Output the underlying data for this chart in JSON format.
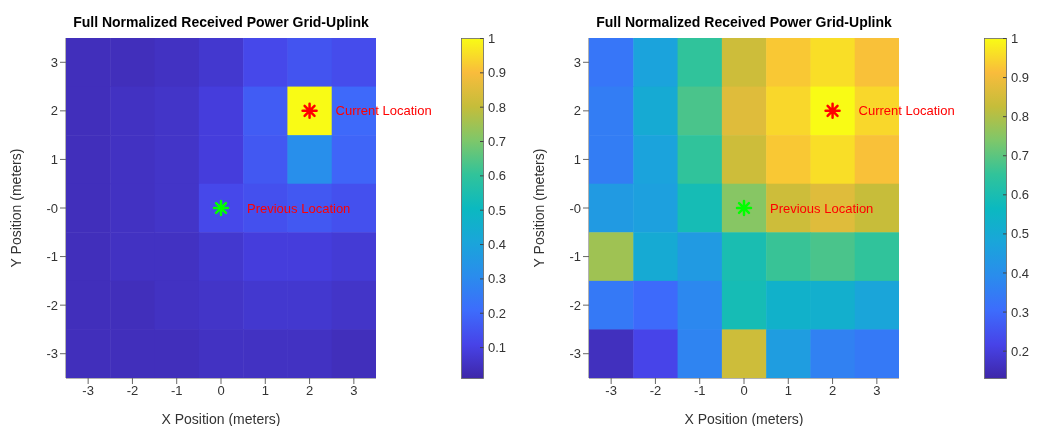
{
  "chart_data": [
    {
      "type": "heatmap",
      "title": "Full Normalized Received Power Grid-Uplink",
      "xlabel": "X Position (meters)",
      "ylabel": "Y Position (meters)",
      "categories": [
        "-3",
        "-2",
        "-1",
        "0",
        "1",
        "2",
        "3"
      ],
      "y_categories": [
        "3",
        "2",
        "1",
        "-0",
        "-1",
        "-2",
        "-3"
      ],
      "cells": [
        [
          0.04,
          0.04,
          0.05,
          0.07,
          0.12,
          0.15,
          0.13
        ],
        [
          0.04,
          0.05,
          0.06,
          0.09,
          0.17,
          1.0,
          0.2
        ],
        [
          0.04,
          0.05,
          0.06,
          0.09,
          0.16,
          0.32,
          0.19
        ],
        [
          0.04,
          0.05,
          0.06,
          0.12,
          0.14,
          0.16,
          0.14
        ],
        [
          0.04,
          0.05,
          0.05,
          0.07,
          0.09,
          0.09,
          0.08
        ],
        [
          0.04,
          0.04,
          0.05,
          0.06,
          0.07,
          0.07,
          0.06
        ],
        [
          0.04,
          0.04,
          0.04,
          0.05,
          0.05,
          0.05,
          0.04
        ]
      ],
      "clim": [
        0.01,
        1
      ],
      "cticks": [
        0.1,
        0.2,
        0.3,
        0.4,
        0.5,
        0.6,
        0.7,
        0.8,
        0.9,
        1
      ],
      "annotations": [
        {
          "text": "Current Location",
          "x": "2",
          "y": "2"
        },
        {
          "text": "Previous Location",
          "x": "0",
          "y": "-0"
        }
      ]
    },
    {
      "type": "heatmap",
      "title": "Full Normalized Received Power Grid-Uplink",
      "xlabel": "X Position (meters)",
      "ylabel": "Y Position (meters)",
      "categories": [
        "-3",
        "-2",
        "-1",
        "0",
        "1",
        "2",
        "3"
      ],
      "y_categories": [
        "3",
        "2",
        "1",
        "-0",
        "-1",
        "-2",
        "-3"
      ],
      "cells": [
        [
          0.33,
          0.47,
          0.65,
          0.84,
          0.93,
          0.96,
          0.92
        ],
        [
          0.35,
          0.5,
          0.68,
          0.87,
          0.95,
          1.0,
          0.95
        ],
        [
          0.35,
          0.47,
          0.65,
          0.84,
          0.93,
          0.96,
          0.92
        ],
        [
          0.44,
          0.46,
          0.59,
          0.75,
          0.84,
          0.87,
          0.83
        ],
        [
          0.78,
          0.5,
          0.44,
          0.6,
          0.66,
          0.68,
          0.65
        ],
        [
          0.34,
          0.3,
          0.38,
          0.59,
          0.53,
          0.52,
          0.48
        ],
        [
          0.16,
          0.22,
          0.37,
          0.84,
          0.45,
          0.36,
          0.34
        ]
      ],
      "clim": [
        0.13,
        1
      ],
      "cticks": [
        0.2,
        0.3,
        0.4,
        0.5,
        0.6,
        0.7,
        0.8,
        0.9,
        1
      ],
      "annotations": [
        {
          "text": "Current Location",
          "x": "2",
          "y": "2"
        },
        {
          "text": "Previous Location",
          "x": "0",
          "y": "-0"
        }
      ]
    }
  ]
}
